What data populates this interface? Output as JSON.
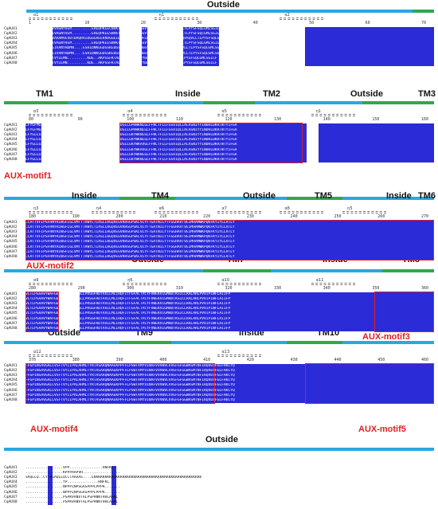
{
  "sequence_names": [
    "CqAUX1",
    "CqAUX2",
    "CqAUX3",
    "CqAUX4",
    "CqAUX5",
    "CqAUX6",
    "CqAUX7",
    "CqAUX8"
  ],
  "colors": {
    "identical": "#2b2bd8",
    "similar": "#8d8df0",
    "motif_box": "#e21f1f",
    "outside_bar": "#29a8e0",
    "inside_bar": "#2fa84f",
    "tm_bar": "#2fa84f"
  },
  "blocks": [
    {
      "topo_label": "Outside",
      "ruler": [
        "1",
        "10",
        "20",
        "30",
        "40",
        "50",
        "60",
        "70"
      ],
      "ss": [
        "α1",
        "η1",
        "α2"
      ],
      "sequences": [
        "M....ASEKVETVVAGNYVEM.........EREQPKEECNVKTKLSNFLWHGGSVYDAWFSCASNQVAQVLLTLPYSFSQLGMLSGILF",
        "M....ASEKVNTIVAGNYVEM.........EREQPKEESNVKTKLSNFLWHGGSVYDAWFSCASNQVAQVLLTLPYSFSQLGMLSGILF",
        "M....AEVVKQVVAAAMVEVDTDAQRVIDGGGVEEKNVGGEIDEKNQKFSPKNFLWHGGSVYDAWFSCASNQVAQVLLTLPYSFSQLG",
        "M....ASEKVNTIVAGNYVEM.........EREQPKEESNVKTKLSNFLWHGGSVYDAWFSCASNQVAQVLLTLPYSFSQLGMLSGILF",
        "M....LTEKVQEEIVANYHDMN....ESHIDNKGGDGSKEDGSMFGLKSFLWHGGSVYDAWFSCASNQVAQVLLTLPYSFSQLGMLSGI",
        "M....LTEKVQEEIVANYHDMN....ESHIDNKGGDGSKEDGSMFGLKSFLWHGGSVYDAWFSCASNQVAQVLLTLPYSFSQLGMLSGI",
        "MANGVDKEKEVVTVYIEMN.........KDE..AKPSSFKTALSNLFWHGGSVYDAWFSCASNQVAQVLLTLPYSFSQLGMLSGILF",
        "MANGVDKEKEVVTVYIEMN.........KDE..AKPSSFKTALSNLFWHGGSVYDAWFSCASNQVAQVLLTLPYSFSQLGMLSGILF"
      ],
      "motifs": []
    },
    {
      "topo_labels": [
        "TM1",
        "Inside",
        "TM2",
        "Outside",
        "TM3"
      ],
      "ruler": [
        "80",
        "90",
        "100",
        "110",
        "120",
        "130",
        "140",
        "150",
        "160"
      ],
      "ss": [
        "α3",
        "α4",
        "α5",
        "η1"
      ],
      "sequences": [
        "LFYGFMGSWTAYLISVLYVEYRTRKEKDQVNFKNHVIQWFEVLDGLLGPHWKNLGLFFNCTFLLFGSVIQLIACASNIYYINDHLDKRTWTYIFGA",
        "LFYGFMGSWTAYLISVLYVEYRTRKEKDQVNFKNHVIQWFEVLDGLLGPHWKNLGLFFNCTFLLFGSVIQLIACASNIYYINDHLDKRTWTYIFGA",
        "LFYGLLGSWTAYLISVLYVEYRSRKEKEGVNFKNHVIQWFEVLDGLLGKYWKNLGLFFNCTFLLFGSVIQLIACASNIYYINDHLDKRTWTYIFGA",
        "LFYGLLGSWTAYLISVLYVEYRSRKEKEGVNFKNHVIQWFEVLDGLLGKYWKNLGLFFNCTFLLFGSVIQLIACASNIYYINDHLDKRTWTYIFGA",
        "LFYGLLGSWTAYLISVLYVEYRSRKEKEGVNFKNHVIQWFEVLDGLLGKYWKAVGLFFNCTFLLFGSVIQLIACASNIYYINDHLDKRTWTYIFGA",
        "LFYGLLGSWTAYLISVLYVEYRSRKEKEGVNFKNHVIQWFEVLDGLLGKYWKAVGLFFNCTFLLFGSVIQLIACASNIYYINDHLDKRTWTYIFGA",
        "LFYGLLGSWTAYLISVLYVEYRSRKEKEGVNFKNHVIQWFEVLDGLLGKYWKNLGLFFNCTFLLFGSVIQLIACASNIYYINDHLDKRTWTYIFGA",
        "LFYGLLGSWTAYLISVLYVEYRSRKEKEGVNFKNHVIQWFEVLDGLLGKYWKNLGLFFNCTFLLFGSVIQLIACASNIYYINDHLDKRTWTYIFGA"
      ],
      "motifs": [
        "AUX-motif1"
      ]
    },
    {
      "topo_labels": [
        "Inside",
        "TM4",
        "Outside",
        "TM5",
        "Inside",
        "TM6"
      ],
      "ruler": [
        "180",
        "190",
        "200",
        "210",
        "220",
        "230",
        "240",
        "250",
        "260",
        "270"
      ],
      "ss": [
        "η3",
        "η4",
        "α6",
        "α7",
        "α8",
        "η5"
      ],
      "sequences": [
        "CCATTVFIPSFHNYRIWSFLGLVMTTTAWYLTIASLLHGQVEGVKHSGPSKLVLYFTGATNILYTFGGHAVTVEIMHAMWKPQKFKYIYLLATLY",
        "CCATTVFIPSFHNYRIWSFLGLVMTTTAWYLTIASLLHGQVEGVKHSGPSKLVLYFTGATNILYTFGGHAVTVEIMHAMWKPQKFKYIYLLATLY",
        "CCATTVFIPSFHNYRIWSFLGLVMTTTAWYLTIASLLHGQVEGVKHSGPSKLVLYFTGATNILYTFGGHAVTVEIMHAMWKPQKFKYIYLLATLY",
        "CCATTVFIPSFHNYRIWSFLGLVMTTTAWYLTIASLLHGQVEGVKHSGPSKLVLYFTGATNILYTFGGHAVTVEIMHAMWKPQKFKYIYLLATLY",
        "CCATTVFIPSFHNYRIWSFLGLVMTTTAWYLTIASLLHGQVEGVKHSGPSKLVLYFTGATNILYTFGGHAVTVEIMHAMWKPQKFKYIYLLATLY",
        "CCATTVFIPSFHNYRIWSFLGLVMTTTAWYLTIASLLHGQVEGVKHSGPSKLVLYFTGATNILYTFGGHAVTVEIMHAMWKPQKFKYIYLLATLY",
        "CCATTVFIPSFHNYRIWSFLGLVMTTTAWYLTIASLLHGQVEGVKHSGPSKLVLYFTGATNILYTFGGHAVTVEIMHAMWKPQKFKYIYLLATLY",
        "CCATTVFIPSFHNYRIWSFLGLVMTTTAWYLTIASLLHGQVEGVKHSGPSKLVLYFTGATNILYTFGGHAVTVEIMHAMWKPQKFKYIYLLATLY"
      ],
      "motifs": [
        "AUX-motif2"
      ]
    },
    {
      "topo_labels": [
        "Outside",
        "TM7",
        "Inside",
        "TM8"
      ],
      "ruler": [
        "280",
        "290",
        "300",
        "310",
        "320",
        "330",
        "340",
        "350",
        "360"
      ],
      "ss": [
        "α9",
        "η6",
        "α10",
        "α11"
      ],
      "sequences": [
        "VLTLPSAAVYWAFGDMLLNHSNAFSLLPRSGFRDTAVILMLIHQFITFGFACTPLYFVWEKVIGMHDTKSICLRALARLPVVIPIWFLAIIFP",
        "VLTLPSAAVYWAFGDMLLNHSNAFSLLPRSGFRDTAVILMLIHQFITFGFACTPLYFVWEKVIGMHDTKSICLRALARLPVVIPIWFLAIIFP",
        "VLTLPSAAVYWAFGDMLLNHSNAFSLLPRSGFRDTAVILMLIHQFITFGFACTPLYFVWEKVIGMHDTKSICLRALARLPVVIPIWFLAIIFP",
        "VLTLPSAAVYWAFGDMLLNHSNAFSLLPRSGFRDTAVILMLIHQFITFGFACTPLYFVWEKVIGMHDTKSICLRALARLPVVIPIWFLAIIFP",
        "VLTLPSAAVYWAFGDMLLNHSNAFSLLPRSGFRDTAVILMLIHQFITFGFACTPLYFVWEKVIGMHDTKSICLRALARLPVVIPIWFLAIIFP",
        "VLTLPSAAVYWAFGDMLLNHSNAFSLLPRSGFRDTAVILMLIHQFITFGFACTPLYFVWEKVIGMHDTKSICLRALARLPVVIPIWFLAIIFP",
        "VLTLPSAAVYWAFGDMLLNHSNAFSLLPRSGFRDTAVILMLIHQFITFGFACTPLYFVWEKVIGMHDTKSICLRALARLPVVIPIWFLAIIFP",
        "VLTLPSAAVYWAFGDMLLNHSNAFSLLPRSGFRDTAVILMLIHQFITFGFACTPLYFVWEKVIGMHDTKSICLRALARLPVVIPIWFLAIIFP"
      ],
      "motifs": [
        "AUX-motif3"
      ]
    },
    {
      "topo_labels": [
        "Outside",
        "TM9",
        "Inside",
        "TM10"
      ],
      "ruler": [
        "370",
        "380",
        "390",
        "400",
        "410",
        "420",
        "430",
        "440",
        "450",
        "460"
      ],
      "ss": [
        "α12",
        "α13"
      ],
      "sequences": [
        "FFGPINSAVGALLVSFTVYIIPALAHMLTYRTASARQNAAEKPPFFLPSWTAMYVINAFVVVWVLVVGFGFGGWASMTNFIRQVDTFGLFAKCYQ",
        "FFGPINSAVGALLVSFTVYIIPALAHMLTYRTASARQNAAEKPPFFLPSWTAMYVINAFVVVWVLVVGFGFGGWASMTNFIRQVDTFGLFAKCYQ",
        "FFGPINSAVGALLVSFTVYIIPALAHMLTYRTASARQNAAEKPPFFLPSWTAMYVINAFVVVWVLVVGFGFGGWASMTNFIRQVDTFGLFAKCYQ",
        "FFGPINSAVGALLVSFTVYIIPALAHMLTYRTASARQNAAEKPPFFLPSWTAMYVINAFVVVWVLVVGFGFGGWASMTNFIRQVDTFGLFAKCYQ",
        "FFGPINSAVGALLVSFTVYIIPALAHMLTYRTASARQNAAEKPPFFLPSWTAMYVINAFVVVWVLVVGFGFGGWASMTNFIRQVDTFGLFAKCYQ",
        "FFGPINSAVGALLVSFTVYIIPALAHMLTYRTASARQNAAEKPPFFLPSWTAMYVINAFVVVWVLVVGFGFGGWASMTNFIRQVDTFGLFAKCYQ",
        "FFGPINSAVGALLVSFTVYIIPALAHMLTYRTASARQNAAEKPPFFLPSWTAMYVINAFVVVWVLVVGFGFGGWASMTNFIRQVDTFGLFAKCYQ",
        "FFGPINSAVGALLVSFTVYIIPALAHMLTYRTASARQNAAEKPPFFLPSWTAMYVINAFVVVWVLVVGFGFGGWASMTNFIRQVDTFGLFAKCYQ"
      ],
      "motifs": [
        "AUX-motif4",
        "AUX-motif5"
      ]
    },
    {
      "topo_label": "Outside",
      "sequences": [
        ".................VPP...............HNFKL.",
        ".................KPPPAAPVH.................",
        "SAQLLQ..CYTAGAQLLQCCTAAAAS....EKKKKKKKKKKKKKKKKKKKKKKKKKKKKKKKKKKKKKKKKKKKKKKKKK",
        ".................YP..............HNFKL.",
        ".................NPPPINPSGASPPPLPPPR.......",
        ".................NPPPINPSGASPPPLPPPR.......",
        ".................PSPKVANVTALPSPANNTHHLAHRL",
        ".................PSPKVANVTALPSPANNTHHLAHRL"
      ]
    }
  ]
}
